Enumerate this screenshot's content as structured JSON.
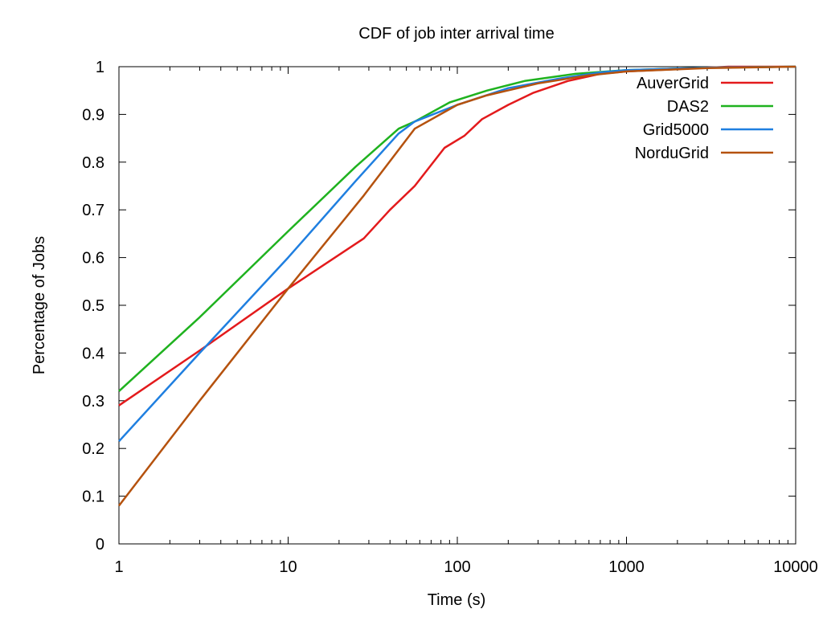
{
  "chart_data": {
    "type": "line",
    "title": "CDF of job inter arrival time",
    "xlabel": "Time (s)",
    "ylabel": "Percentage of Jobs",
    "xscale": "log",
    "xlim": [
      1,
      10000
    ],
    "ylim": [
      0,
      1
    ],
    "xticks": [
      1,
      10,
      100,
      1000,
      10000
    ],
    "xtick_labels": [
      "1",
      "10",
      "100",
      "1000",
      "10000"
    ],
    "yticks": [
      0,
      0.1,
      0.2,
      0.3,
      0.4,
      0.5,
      0.6,
      0.7,
      0.8,
      0.9,
      1
    ],
    "ytick_labels": [
      "0",
      "0.1",
      "0.2",
      "0.3",
      "0.4",
      "0.5",
      "0.6",
      "0.7",
      "0.8",
      "0.9",
      "1"
    ],
    "grid": false,
    "legend_position": "top-right",
    "series": [
      {
        "name": "AuverGrid",
        "color": "#e31a1c",
        "points": [
          [
            1,
            0.29
          ],
          [
            3,
            0.405
          ],
          [
            10,
            0.535
          ],
          [
            28,
            0.64
          ],
          [
            40,
            0.7
          ],
          [
            56,
            0.75
          ],
          [
            84,
            0.83
          ],
          [
            110,
            0.855
          ],
          [
            140,
            0.89
          ],
          [
            200,
            0.92
          ],
          [
            280,
            0.945
          ],
          [
            450,
            0.97
          ],
          [
            700,
            0.985
          ],
          [
            1000,
            0.99
          ],
          [
            2000,
            0.995
          ],
          [
            4000,
            1.0
          ],
          [
            10000,
            1.0
          ]
        ]
      },
      {
        "name": "DAS2",
        "color": "#1fb21f",
        "points": [
          [
            1,
            0.32
          ],
          [
            3,
            0.475
          ],
          [
            10,
            0.655
          ],
          [
            25,
            0.79
          ],
          [
            45,
            0.87
          ],
          [
            56,
            0.885
          ],
          [
            90,
            0.925
          ],
          [
            150,
            0.95
          ],
          [
            250,
            0.97
          ],
          [
            500,
            0.985
          ],
          [
            1000,
            0.993
          ],
          [
            3000,
            0.998
          ],
          [
            10000,
            1.0
          ]
        ]
      },
      {
        "name": "Grid5000",
        "color": "#1f7fe0",
        "points": [
          [
            1,
            0.215
          ],
          [
            3,
            0.4
          ],
          [
            10,
            0.6
          ],
          [
            25,
            0.76
          ],
          [
            45,
            0.86
          ],
          [
            56,
            0.885
          ],
          [
            100,
            0.92
          ],
          [
            200,
            0.955
          ],
          [
            400,
            0.975
          ],
          [
            700,
            0.988
          ],
          [
            1000,
            0.993
          ],
          [
            3000,
            0.998
          ],
          [
            10000,
            1.0
          ]
        ]
      },
      {
        "name": "NorduGrid",
        "color": "#b5520e",
        "points": [
          [
            1,
            0.08
          ],
          [
            3,
            0.3
          ],
          [
            10,
            0.535
          ],
          [
            28,
            0.73
          ],
          [
            56,
            0.87
          ],
          [
            100,
            0.92
          ],
          [
            150,
            0.94
          ],
          [
            300,
            0.965
          ],
          [
            600,
            0.982
          ],
          [
            1000,
            0.99
          ],
          [
            3000,
            0.997
          ],
          [
            10000,
            1.0
          ]
        ]
      }
    ]
  }
}
